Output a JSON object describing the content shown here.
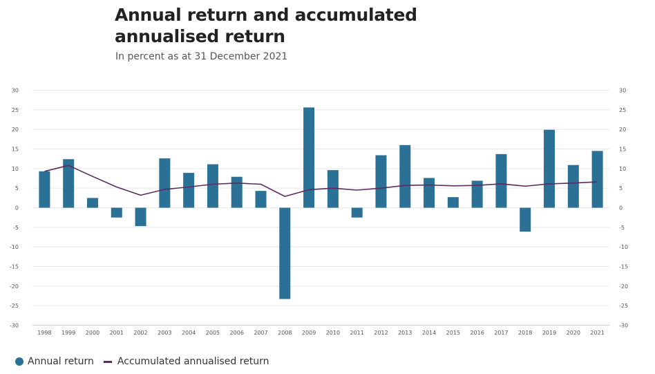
{
  "header": {
    "title": "Annual return and accumulated annualised return",
    "subtitle": "In percent as at 31 December 2021"
  },
  "legend": {
    "annual_label": "Annual return",
    "accumulated_label": "Accumulated annualised return"
  },
  "colors": {
    "bar": "#2b7196",
    "line": "#5b2b5e",
    "grid": "#e6e6e6",
    "axis": "#cccccc"
  },
  "chart_data": {
    "type": "bar",
    "categories": [
      "1998",
      "1999",
      "2000",
      "2001",
      "2002",
      "2003",
      "2004",
      "2005",
      "2006",
      "2007",
      "2008",
      "2009",
      "2010",
      "2011",
      "2012",
      "2013",
      "2014",
      "2015",
      "2016",
      "2017",
      "2018",
      "2019",
      "2020",
      "2021"
    ],
    "series": [
      {
        "name": "Annual return",
        "type": "bar",
        "values": [
          9.3,
          12.4,
          2.5,
          -2.5,
          -4.7,
          12.6,
          8.9,
          11.1,
          7.9,
          4.3,
          -23.3,
          25.6,
          9.6,
          -2.5,
          13.4,
          16.0,
          7.6,
          2.7,
          6.9,
          13.7,
          -6.1,
          19.9,
          10.9,
          14.5
        ]
      },
      {
        "name": "Accumulated annualised return",
        "type": "line",
        "values": [
          9.3,
          10.8,
          8.0,
          5.3,
          3.2,
          4.7,
          5.3,
          6.0,
          6.3,
          6.0,
          2.9,
          4.6,
          5.0,
          4.5,
          5.0,
          5.7,
          5.8,
          5.6,
          5.7,
          6.1,
          5.5,
          6.1,
          6.3,
          6.6
        ]
      }
    ],
    "ylim": [
      -30,
      30
    ],
    "yticks": [
      30,
      25,
      20,
      15,
      10,
      5,
      0,
      -5,
      -10,
      -15,
      -20,
      -25,
      -30
    ],
    "grid": true,
    "legend_position": "bottom-left"
  }
}
